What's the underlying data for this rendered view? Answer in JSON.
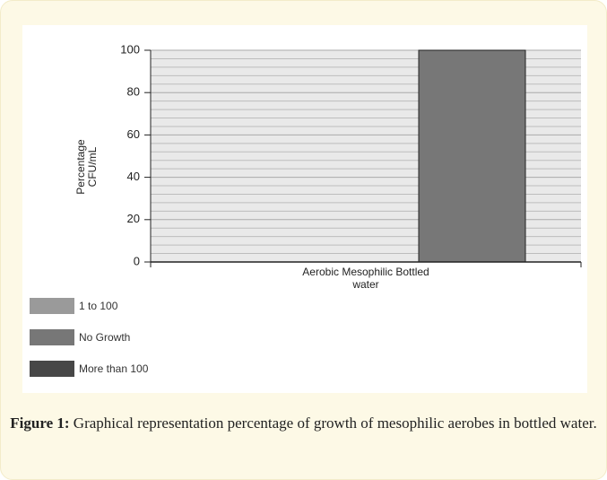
{
  "chart_data": {
    "type": "bar",
    "y_label": "Percentage CFU/mL",
    "categories": [
      "Aerobic Mesophilic Bottled water"
    ],
    "series": [
      {
        "name": "1 to 100",
        "color": "#9a9a9a",
        "values": [
          0
        ]
      },
      {
        "name": "No Growth",
        "color": "#777777",
        "values": [
          100
        ]
      },
      {
        "name": "More than 100",
        "color": "#474747",
        "values": [
          0
        ]
      }
    ],
    "ylim": [
      0,
      100
    ],
    "yticks": [
      0,
      20,
      40,
      60,
      80,
      100
    ],
    "grid": true,
    "legend": "bottom-left",
    "caption_label": "Figure 1:",
    "caption": "Graphical representation percentage of growth of mesophilic aerobes in bottled water."
  }
}
